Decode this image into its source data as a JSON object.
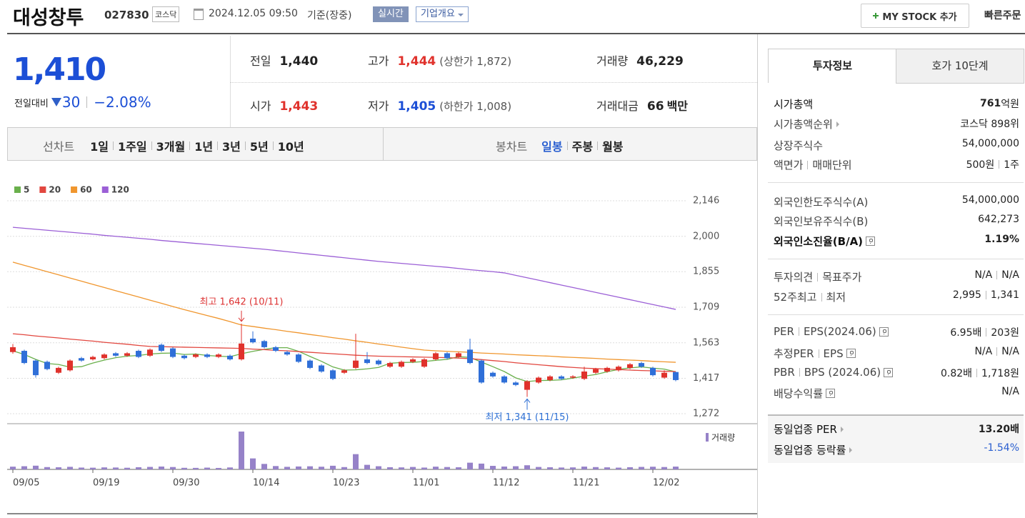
{
  "header": {
    "name": "대성창투",
    "code": "027830",
    "market": "코스닥",
    "time": "2024.12.05 09:50",
    "time_note": "기준(장중)",
    "realtime": "실시간",
    "overview": "기업개요",
    "my_stock": "MY STOCK 추가",
    "quick_order": "빠른주문"
  },
  "summary": {
    "price": "1,410",
    "change_label": "전일대비",
    "change": "30",
    "change_rate": "−2.08%",
    "stats": [
      {
        "label": "전일",
        "value": "1,440"
      },
      {
        "label": "고가",
        "value": "1,444",
        "note": "(상한가 1,872)"
      },
      {
        "label": "거래량",
        "value": "46,229"
      },
      {
        "label": "시가",
        "value": "1,443"
      },
      {
        "label": "저가",
        "value": "1,405",
        "note": "(하한가 1,008)"
      },
      {
        "label": "거래대금",
        "value": "66",
        "unit": "백만"
      }
    ]
  },
  "tabs": {
    "line_chart": "선차트",
    "periods": [
      "1일",
      "1주일",
      "3개월",
      "1년",
      "3년",
      "5년",
      "10년"
    ],
    "candle_chart": "봉차트",
    "candle_periods": [
      "일봉",
      "주봉",
      "월봉"
    ]
  },
  "chart_data": {
    "type": "candlestick",
    "categories": [
      "09/05",
      null,
      null,
      null,
      null,
      null,
      null,
      "09/19",
      null,
      null,
      null,
      null,
      null,
      null,
      "09/30",
      null,
      null,
      null,
      null,
      null,
      null,
      "10/14",
      null,
      null,
      null,
      null,
      null,
      null,
      "10/23",
      null,
      null,
      null,
      null,
      null,
      null,
      "11/01",
      null,
      null,
      null,
      null,
      null,
      null,
      "11/12",
      null,
      null,
      null,
      null,
      null,
      null,
      "11/21",
      null,
      null,
      null,
      null,
      null,
      null,
      "12/02",
      null,
      null
    ],
    "open": [
      1525,
      1530,
      1490,
      1485,
      1440,
      1450,
      1500,
      1495,
      1500,
      1520,
      1510,
      1530,
      1510,
      1555,
      1540,
      1510,
      1505,
      1515,
      1505,
      1510,
      1495,
      1580,
      1570,
      1545,
      1525,
      1515,
      1490,
      1470,
      1450,
      1440,
      1460,
      1495,
      1490,
      1465,
      1465,
      1485,
      1465,
      1495,
      1520,
      1505,
      1535,
      1490,
      1440,
      1425,
      1400,
      1370,
      1400,
      1410,
      1425,
      1420,
      1415,
      1440,
      1445,
      1450,
      1460,
      1480,
      1460,
      1420,
      1443
    ],
    "high": [
      1558,
      1535,
      1495,
      1490,
      1465,
      1495,
      1505,
      1510,
      1520,
      1525,
      1525,
      1535,
      1540,
      1560,
      1545,
      1515,
      1520,
      1520,
      1520,
      1515,
      1642,
      1610,
      1575,
      1550,
      1530,
      1520,
      1495,
      1475,
      1455,
      1455,
      1600,
      1525,
      1495,
      1485,
      1490,
      1500,
      1500,
      1525,
      1525,
      1525,
      1580,
      1495,
      1445,
      1430,
      1405,
      1410,
      1425,
      1430,
      1430,
      1430,
      1465,
      1460,
      1465,
      1470,
      1480,
      1485,
      1465,
      1450,
      1444
    ],
    "low": [
      1518,
      1475,
      1420,
      1450,
      1435,
      1445,
      1485,
      1490,
      1495,
      1505,
      1505,
      1500,
      1505,
      1525,
      1500,
      1495,
      1500,
      1500,
      1500,
      1490,
      1490,
      1560,
      1540,
      1525,
      1510,
      1480,
      1455,
      1440,
      1410,
      1435,
      1455,
      1475,
      1470,
      1460,
      1460,
      1480,
      1460,
      1490,
      1495,
      1500,
      1475,
      1395,
      1420,
      1395,
      1385,
      1341,
      1395,
      1405,
      1410,
      1415,
      1410,
      1435,
      1440,
      1445,
      1455,
      1460,
      1425,
      1415,
      1405
    ],
    "close": [
      1545,
      1480,
      1430,
      1455,
      1460,
      1490,
      1490,
      1505,
      1515,
      1510,
      1520,
      1505,
      1535,
      1530,
      1505,
      1500,
      1515,
      1505,
      1515,
      1495,
      1560,
      1565,
      1545,
      1530,
      1515,
      1485,
      1460,
      1445,
      1415,
      1450,
      1490,
      1480,
      1475,
      1480,
      1485,
      1495,
      1495,
      1520,
      1500,
      1520,
      1480,
      1400,
      1425,
      1400,
      1390,
      1405,
      1420,
      1425,
      1415,
      1425,
      1445,
      1455,
      1460,
      1465,
      1475,
      1465,
      1430,
      1440,
      1410
    ],
    "up_color": "#e0322c",
    "down_color": "#2f6fd8",
    "series": [
      {
        "name": "5",
        "color": "#6ab04c",
        "values": [
          1530,
          1515,
          1495,
          1478,
          1474,
          1463,
          1465,
          1480,
          1492,
          1502,
          1508,
          1511,
          1517,
          1520,
          1521,
          1515,
          1517,
          1511,
          1508,
          1506,
          1518,
          1528,
          1536,
          1543,
          1543,
          1528,
          1507,
          1487,
          1464,
          1451,
          1452,
          1456,
          1462,
          1479,
          1482,
          1483,
          1486,
          1491,
          1495,
          1506,
          1503,
          1484,
          1465,
          1445,
          1419,
          1404,
          1408,
          1409,
          1411,
          1418,
          1426,
          1433,
          1444,
          1454,
          1460,
          1464,
          1459,
          1455,
          1444
        ]
      },
      {
        "name": "20",
        "color": "#e2473f",
        "values": [
          1600,
          1596,
          1591,
          1587,
          1583,
          1578,
          1574,
          1570,
          1565,
          1561,
          1557,
          1552,
          1548,
          1547,
          1546,
          1545,
          1544,
          1543,
          1542,
          1541,
          1540,
          1537,
          1535,
          1532,
          1530,
          1527,
          1524,
          1521,
          1518,
          1515,
          1512,
          1510,
          1508,
          1507,
          1506,
          1505,
          1504,
          1503,
          1502,
          1500,
          1498,
          1494,
          1490,
          1486,
          1481,
          1477,
          1473,
          1469,
          1465,
          1462,
          1459,
          1457,
          1455,
          1453,
          1451,
          1449,
          1448,
          1446,
          1445
        ]
      },
      {
        "name": "60",
        "color": "#f0962e",
        "values": [
          1894,
          1881,
          1868,
          1855,
          1842,
          1829,
          1816,
          1803,
          1790,
          1777,
          1764,
          1751,
          1738,
          1725,
          1712,
          1699,
          1687,
          1675,
          1663,
          1650,
          1636,
          1630,
          1623,
          1617,
          1610,
          1604,
          1597,
          1591,
          1584,
          1578,
          1571,
          1565,
          1558,
          1552,
          1545,
          1539,
          1533,
          1530,
          1528,
          1526,
          1524,
          1521,
          1519,
          1517,
          1514,
          1512,
          1510,
          1508,
          1505,
          1503,
          1501,
          1499,
          1496,
          1494,
          1492,
          1490,
          1487,
          1485,
          1483
        ]
      },
      {
        "name": "120",
        "color": "#9b5fd6",
        "values": [
          2037,
          2033,
          2029,
          2025,
          2021,
          2017,
          2013,
          2009,
          2004,
          2000,
          1996,
          1992,
          1988,
          1983,
          1979,
          1975,
          1971,
          1967,
          1963,
          1959,
          1955,
          1951,
          1947,
          1942,
          1937,
          1932,
          1927,
          1922,
          1917,
          1912,
          1907,
          1902,
          1897,
          1893,
          1889,
          1885,
          1881,
          1877,
          1873,
          1868,
          1863,
          1859,
          1855,
          1850,
          1840,
          1830,
          1820,
          1810,
          1800,
          1790,
          1780,
          1770,
          1760,
          1750,
          1740,
          1730,
          1720,
          1710,
          1700
        ]
      }
    ],
    "volume": {
      "name": "거래량",
      "color": "#9682c8",
      "values": [
        45000,
        52000,
        61000,
        38000,
        35000,
        42000,
        30000,
        28000,
        33000,
        31000,
        27000,
        36000,
        41000,
        47000,
        39000,
        26000,
        25000,
        29000,
        24000,
        32000,
        620000,
        180000,
        90000,
        55000,
        42000,
        48000,
        51000,
        44000,
        60000,
        38000,
        250000,
        75000,
        52000,
        36000,
        33000,
        40000,
        30000,
        45000,
        39000,
        35000,
        110000,
        95000,
        58000,
        47000,
        52000,
        68000,
        40000,
        35000,
        31000,
        33000,
        46000,
        38000,
        34000,
        29000,
        36000,
        41000,
        44000,
        39000,
        46229
      ]
    },
    "ylim": [
      1272,
      2146
    ],
    "yticks": [
      {
        "value": 2146,
        "label": "2,146"
      },
      {
        "value": 2000,
        "label": "2,000"
      },
      {
        "value": 1855,
        "label": "1,855"
      },
      {
        "value": 1709,
        "label": "1,709"
      },
      {
        "value": 1563,
        "label": "1,563"
      },
      {
        "value": 1417,
        "label": "1,417"
      },
      {
        "value": 1272,
        "label": "1,272"
      }
    ],
    "grid": true,
    "annotations": {
      "high": "최고 1,642 (10/11)",
      "low": "최저 1,341 (11/15)"
    }
  },
  "info": {
    "tabs": [
      "투자정보",
      "호가 10단계"
    ],
    "rows": [
      {
        "label": "시가총액",
        "value": "761",
        "unit": "억원"
      },
      {
        "label": "시가총액순위",
        "value": "코스닥 898위"
      },
      {
        "label": "상장주식수",
        "value": "54,000,000"
      },
      {
        "labels": [
          "액면가",
          "매매단위"
        ],
        "values": [
          "500원",
          "1주"
        ]
      },
      {
        "label": "외국인한도주식수(A)",
        "value": "54,000,000"
      },
      {
        "label": "외국인보유주식수(B)",
        "value": "642,273"
      },
      {
        "label": "외국인소진율(B/A)",
        "value": "1.19%"
      },
      {
        "labels": [
          "투자의견",
          "목표주가"
        ],
        "values": [
          "N/A",
          "N/A"
        ]
      },
      {
        "labels": [
          "52주최고",
          "최저"
        ],
        "values": [
          "2,995",
          "1,341"
        ]
      },
      {
        "labels": [
          "PER",
          "EPS(2024.06)"
        ],
        "values": [
          "6.95배",
          "203원"
        ]
      },
      {
        "labels": [
          "추정PER",
          "EPS"
        ],
        "values": [
          "N/A",
          "N/A"
        ]
      },
      {
        "labels": [
          "PBR",
          "BPS (2024.06)"
        ],
        "values": [
          "0.82배",
          "1,718원"
        ]
      },
      {
        "label": "배당수익률",
        "value": "N/A"
      },
      {
        "label": "동일업종 PER",
        "value": "13.20배"
      },
      {
        "label": "동일업종 등락률",
        "value": "-1.54%"
      }
    ]
  }
}
